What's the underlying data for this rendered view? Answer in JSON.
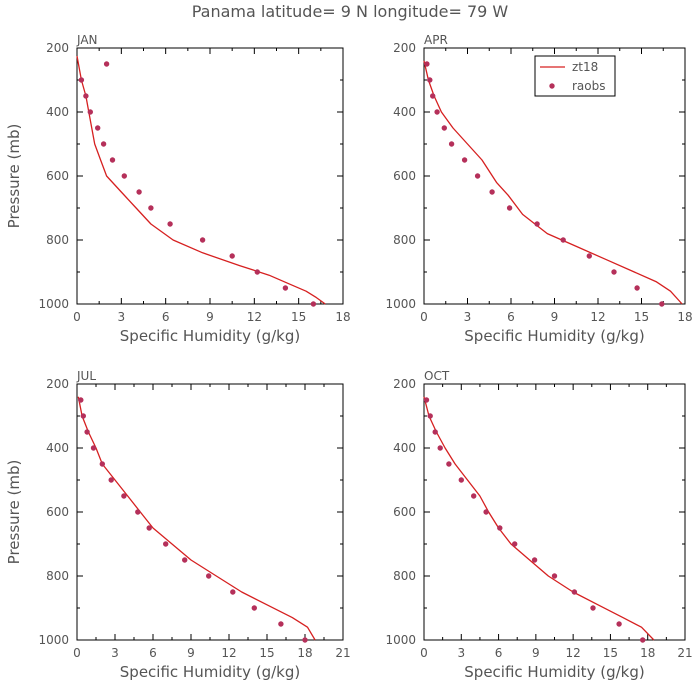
{
  "title": "Panama  latitude= 9 N longitude= 79 W",
  "colors": {
    "model": "#d62020",
    "obs": "#b5305a",
    "axis": "#000000",
    "text": "#555555"
  },
  "chart_data": [
    {
      "type": "line",
      "panel": "JAN",
      "xlabel": "Specific Humidity (g/kg)",
      "ylabel": "Pressure (mb)",
      "xlim": [
        0,
        18
      ],
      "ylim": [
        200,
        1000
      ],
      "xticks": [
        0,
        3,
        6,
        9,
        12,
        15,
        18
      ],
      "yticks": [
        200,
        400,
        600,
        800,
        1000
      ],
      "model": {
        "name": "zt18",
        "x": [
          0.0,
          0.3,
          0.6,
          0.8,
          1.2,
          1.6,
          2.0,
          3.0,
          4.0,
          5.0,
          6.5,
          8.5,
          11.0,
          13.0,
          14.5,
          15.5,
          16.2,
          16.8
        ],
        "y": [
          225,
          300,
          350,
          400,
          500,
          550,
          600,
          650,
          700,
          750,
          800,
          840,
          880,
          910,
          940,
          960,
          980,
          1000
        ]
      },
      "obs": {
        "name": "raobs",
        "x": [
          2.0,
          0.3,
          0.6,
          0.9,
          1.4,
          1.8,
          2.4,
          3.2,
          4.2,
          5.0,
          6.3,
          8.5,
          10.5,
          12.2,
          14.1,
          16.0
        ],
        "y": [
          250,
          300,
          350,
          400,
          450,
          500,
          550,
          600,
          650,
          700,
          750,
          800,
          850,
          900,
          950,
          1000
        ]
      }
    },
    {
      "type": "line",
      "panel": "APR",
      "xlabel": "Specific Humidity (g/kg)",
      "ylabel": "",
      "xlim": [
        0,
        18
      ],
      "ylim": [
        200,
        1000
      ],
      "xticks": [
        0,
        3,
        6,
        9,
        12,
        15,
        18
      ],
      "yticks": [
        200,
        400,
        600,
        800,
        1000
      ],
      "legend": {
        "position": "top-right",
        "entries": [
          "zt18",
          "raobs"
        ]
      },
      "model": {
        "name": "zt18",
        "x": [
          0.0,
          0.3,
          0.7,
          1.2,
          2.0,
          3.0,
          4.0,
          5.0,
          5.8,
          6.8,
          8.5,
          10.5,
          12.5,
          14.5,
          16.0,
          17.0,
          17.8
        ],
        "y": [
          240,
          300,
          350,
          400,
          450,
          500,
          550,
          620,
          660,
          720,
          780,
          820,
          860,
          900,
          930,
          960,
          1000
        ]
      },
      "obs": {
        "name": "raobs",
        "x": [
          0.2,
          0.4,
          0.6,
          0.9,
          1.4,
          1.9,
          2.8,
          3.7,
          4.7,
          5.9,
          7.8,
          9.6,
          11.4,
          13.1,
          14.7,
          16.4
        ],
        "y": [
          250,
          300,
          350,
          400,
          450,
          500,
          550,
          600,
          650,
          700,
          750,
          800,
          850,
          900,
          950,
          1000
        ]
      }
    },
    {
      "type": "line",
      "panel": "JUL",
      "xlabel": "Specific Humidity (g/kg)",
      "ylabel": "Pressure (mb)",
      "xlim": [
        0,
        21
      ],
      "ylim": [
        200,
        1000
      ],
      "xticks": [
        0,
        3,
        6,
        9,
        12,
        15,
        18,
        21
      ],
      "yticks": [
        200,
        400,
        600,
        800,
        1000
      ],
      "model": {
        "name": "zt18",
        "x": [
          0.1,
          0.4,
          0.9,
          1.5,
          2.0,
          3.0,
          4.0,
          5.0,
          6.0,
          7.5,
          9.0,
          11.0,
          13.0,
          15.0,
          17.0,
          18.2,
          18.8
        ],
        "y": [
          240,
          300,
          350,
          400,
          450,
          500,
          550,
          600,
          650,
          700,
          750,
          800,
          850,
          890,
          930,
          960,
          1000
        ]
      },
      "obs": {
        "name": "raobs",
        "x": [
          0.3,
          0.5,
          0.8,
          1.3,
          2.0,
          2.7,
          3.7,
          4.8,
          5.7,
          7.0,
          8.5,
          10.4,
          12.3,
          14.0,
          16.1,
          18.0
        ],
        "y": [
          250,
          300,
          350,
          400,
          450,
          500,
          550,
          600,
          650,
          700,
          750,
          800,
          850,
          900,
          950,
          1000
        ]
      }
    },
    {
      "type": "line",
      "panel": "OCT",
      "xlabel": "Specific Humidity (g/kg)",
      "ylabel": "",
      "xlim": [
        0,
        21
      ],
      "ylim": [
        200,
        1000
      ],
      "xticks": [
        0,
        3,
        6,
        9,
        12,
        15,
        18,
        21
      ],
      "yticks": [
        200,
        400,
        600,
        800,
        1000
      ],
      "model": {
        "name": "zt18",
        "x": [
          0.0,
          0.4,
          1.0,
          1.7,
          2.5,
          3.5,
          4.5,
          5.2,
          6.0,
          7.0,
          8.5,
          10.0,
          12.0,
          14.0,
          16.0,
          17.5,
          18.5
        ],
        "y": [
          240,
          300,
          350,
          400,
          450,
          500,
          550,
          600,
          650,
          700,
          750,
          800,
          850,
          890,
          930,
          960,
          1000
        ]
      },
      "obs": {
        "name": "raobs",
        "x": [
          0.2,
          0.5,
          0.9,
          1.3,
          2.0,
          3.0,
          4.0,
          5.0,
          6.1,
          7.3,
          8.9,
          10.5,
          12.1,
          13.6,
          15.7,
          17.6
        ],
        "y": [
          250,
          300,
          350,
          400,
          450,
          500,
          550,
          600,
          650,
          700,
          750,
          800,
          850,
          900,
          950,
          1000
        ]
      }
    }
  ]
}
